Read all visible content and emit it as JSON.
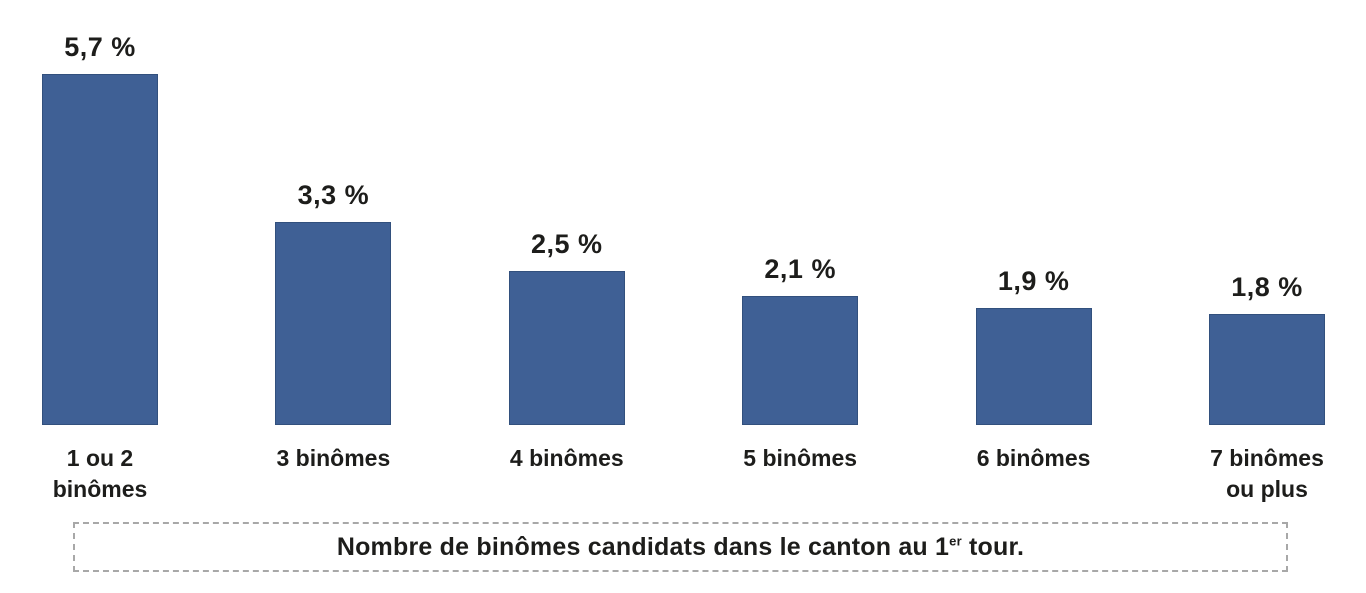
{
  "chart_data": {
    "type": "bar",
    "categories": [
      "1 ou 2 binômes",
      "3 binômes",
      "4 binômes",
      "5 binômes",
      "6 binômes",
      "7 binômes ou plus"
    ],
    "category_lines": [
      [
        "1 ou 2",
        "binômes"
      ],
      [
        "3 binômes"
      ],
      [
        "4 binômes"
      ],
      [
        "5 binômes"
      ],
      [
        "6 binômes"
      ],
      [
        "7 binômes",
        "ou plus"
      ]
    ],
    "values": [
      5.7,
      3.3,
      2.5,
      2.1,
      1.9,
      1.8
    ],
    "value_labels": [
      "5,7 %",
      "3,3 %",
      "2,5 %",
      "2,1 %",
      "1,9 %",
      "1,8 %"
    ],
    "title": "",
    "xlabel": "Nombre de binômes candidats dans le canton au 1er tour.",
    "ylabel": "",
    "ylim": [
      0,
      6
    ],
    "grid": false,
    "legend": false,
    "unit": "%"
  },
  "caption": {
    "prefix": "Nombre de binômes candidats dans le canton au 1",
    "superscript": "er",
    "suffix": " tour."
  },
  "colors": {
    "bar_fill": "#3F6095",
    "bar_border": "#32507D",
    "text": "#1D1D1B",
    "caption_border": "#A8A8A8",
    "background": "#FFFFFF"
  }
}
